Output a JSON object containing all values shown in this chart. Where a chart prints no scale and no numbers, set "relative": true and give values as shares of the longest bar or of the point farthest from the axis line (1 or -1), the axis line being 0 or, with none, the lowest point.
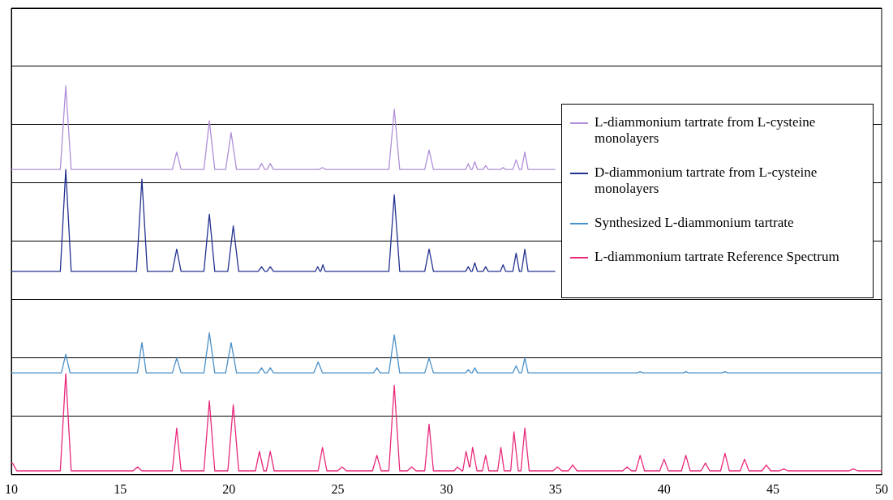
{
  "chart_data": {
    "type": "line",
    "relative": true,
    "xlim": [
      10,
      50
    ],
    "xticks": [
      10,
      15,
      20,
      25,
      30,
      35,
      40,
      45,
      50
    ],
    "tick_labels": "x",
    "grid": "y",
    "legend": "right",
    "marker": "none",
    "line_style": "solid",
    "series": [
      {
        "name": "L-diammonium tartrate from L-cysteine monolayers",
        "color": "#b08fd8",
        "x": [
          10,
          12.25,
          12.5,
          12.75,
          17.4,
          17.6,
          17.8,
          18.85,
          19.1,
          19.35,
          19.85,
          20.1,
          20.35,
          21.35,
          21.5,
          21.65,
          21.75,
          21.9,
          22.05,
          24.15,
          24.3,
          24.45,
          27.35,
          27.6,
          27.85,
          29,
          29.2,
          29.4,
          30.88,
          31,
          31.12,
          31.18,
          31.3,
          31.42,
          31.68,
          31.8,
          31.92,
          32.48,
          32.6,
          32.72,
          33.05,
          33.2,
          33.35,
          33.45,
          33.6,
          33.75,
          35
        ],
        "values": [
          0.785,
          0.785,
          1,
          0.785,
          0.785,
          0.83,
          0.785,
          0.785,
          0.91,
          0.785,
          0.785,
          0.88,
          0.785,
          0.785,
          0.8,
          0.785,
          0.785,
          0.8,
          0.785,
          0.785,
          0.79,
          0.785,
          0.785,
          0.94,
          0.785,
          0.785,
          0.835,
          0.785,
          0.785,
          0.8,
          0.785,
          0.785,
          0.805,
          0.785,
          0.785,
          0.795,
          0.785,
          0.785,
          0.79,
          0.785,
          0.785,
          0.81,
          0.785,
          0.785,
          0.83,
          0.785,
          0.785
        ]
      },
      {
        "name": "D-diammonium tartrate from L-cysteine monolayers",
        "color": "#23318f",
        "x": [
          10,
          12.25,
          12.5,
          12.75,
          15.75,
          16,
          16.25,
          17.4,
          17.6,
          17.8,
          18.85,
          19.1,
          19.35,
          19.95,
          20.2,
          20.45,
          21.35,
          21.5,
          21.65,
          21.75,
          21.9,
          22.05,
          23.98,
          24.08,
          24.18,
          24.22,
          24.32,
          24.42,
          27.35,
          27.6,
          27.85,
          29,
          29.2,
          29.4,
          30.88,
          31,
          31.12,
          31.18,
          31.3,
          31.42,
          31.68,
          31.8,
          31.92,
          32.48,
          32.6,
          32.72,
          33.05,
          33.2,
          33.35,
          33.45,
          33.6,
          33.75,
          35
        ],
        "values": [
          0.523,
          0.523,
          0.785,
          0.523,
          0.523,
          0.76,
          0.523,
          0.523,
          0.58,
          0.523,
          0.523,
          0.67,
          0.523,
          0.523,
          0.64,
          0.523,
          0.523,
          0.535,
          0.523,
          0.523,
          0.535,
          0.523,
          0.523,
          0.535,
          0.523,
          0.523,
          0.54,
          0.523,
          0.523,
          0.72,
          0.523,
          0.523,
          0.58,
          0.523,
          0.523,
          0.535,
          0.523,
          0.523,
          0.545,
          0.523,
          0.523,
          0.535,
          0.523,
          0.523,
          0.54,
          0.523,
          0.523,
          0.57,
          0.523,
          0.523,
          0.58,
          0.523,
          0.523
        ]
      },
      {
        "name": "Synthesized L-diammonium tartrate",
        "color": "#4a90c8",
        "x": [
          10,
          12.3,
          12.5,
          12.7,
          15.8,
          16,
          16.2,
          17.4,
          17.6,
          17.8,
          18.85,
          19.1,
          19.35,
          19.85,
          20.1,
          20.35,
          21.35,
          21.5,
          21.65,
          21.75,
          21.9,
          22.05,
          23.9,
          24.1,
          24.3,
          26.65,
          26.8,
          26.95,
          27.35,
          27.6,
          27.85,
          29,
          29.2,
          29.4,
          30.88,
          31,
          31.12,
          31.18,
          31.3,
          31.42,
          33.05,
          33.2,
          33.35,
          33.45,
          33.6,
          33.75,
          38.78,
          38.9,
          39.02,
          40.88,
          41,
          41.12,
          42.68,
          42.8,
          42.92,
          50
        ],
        "values": [
          0.262,
          0.262,
          0.31,
          0.262,
          0.262,
          0.34,
          0.262,
          0.262,
          0.3,
          0.262,
          0.262,
          0.365,
          0.262,
          0.262,
          0.34,
          0.262,
          0.262,
          0.275,
          0.262,
          0.262,
          0.275,
          0.262,
          0.262,
          0.29,
          0.262,
          0.262,
          0.275,
          0.262,
          0.262,
          0.36,
          0.262,
          0.262,
          0.3,
          0.262,
          0.262,
          0.27,
          0.262,
          0.262,
          0.275,
          0.262,
          0.262,
          0.28,
          0.262,
          0.262,
          0.3,
          0.262,
          0.262,
          0.265,
          0.262,
          0.262,
          0.265,
          0.262,
          0.262,
          0.265,
          0.262,
          0.262
        ]
      },
      {
        "name": "L-diammonium tartrate Reference Spectrum",
        "color": "#e8287a",
        "x": [
          10,
          10.05,
          10.25,
          12.25,
          12.5,
          12.75,
          15.6,
          15.8,
          16,
          17.4,
          17.6,
          17.8,
          18.85,
          19.1,
          19.35,
          19.95,
          20.2,
          20.45,
          21.22,
          21.4,
          21.6,
          21.72,
          21.9,
          22.08,
          24.1,
          24.3,
          24.5,
          25,
          25.2,
          25.4,
          26.6,
          26.8,
          27,
          27.35,
          27.6,
          27.85,
          28.2,
          28.4,
          28.6,
          29,
          29.2,
          29.4,
          30.35,
          30.5,
          30.7,
          30.75,
          30.9,
          31.05,
          31.08,
          31.2,
          31.4,
          31.65,
          31.8,
          31.95,
          32.35,
          32.5,
          32.65,
          32.95,
          33.1,
          33.3,
          33.42,
          33.6,
          33.8,
          34.9,
          35.1,
          35.3,
          35.6,
          35.8,
          36,
          38.1,
          38.3,
          38.5,
          38.7,
          38.9,
          39.1,
          39.8,
          40,
          40.2,
          40.8,
          41,
          41.2,
          41.7,
          41.9,
          42.1,
          42.6,
          42.8,
          43,
          43.5,
          43.7,
          43.9,
          44.5,
          44.7,
          44.9,
          45.3,
          45.5,
          45.7,
          48.5,
          48.7,
          48.9,
          50
        ],
        "values": [
          0.03,
          0.03,
          0.01,
          0.01,
          0.26,
          0.01,
          0.01,
          0.02,
          0.01,
          0.01,
          0.12,
          0.01,
          0.01,
          0.19,
          0.01,
          0.01,
          0.18,
          0.01,
          0.01,
          0.06,
          0.01,
          0.01,
          0.06,
          0.01,
          0.01,
          0.07,
          0.01,
          0.01,
          0.02,
          0.01,
          0.01,
          0.05,
          0.01,
          0.01,
          0.23,
          0.01,
          0.01,
          0.02,
          0.01,
          0.01,
          0.13,
          0.01,
          0.01,
          0.02,
          0.01,
          0.01,
          0.06,
          0.02,
          0.02,
          0.07,
          0.01,
          0.01,
          0.05,
          0.01,
          0.01,
          0.07,
          0.01,
          0.01,
          0.11,
          0.01,
          0.01,
          0.12,
          0.01,
          0.01,
          0.02,
          0.01,
          0.01,
          0.025,
          0.01,
          0.01,
          0.02,
          0.01,
          0.01,
          0.05,
          0.01,
          0.01,
          0.04,
          0.01,
          0.01,
          0.05,
          0.01,
          0.01,
          0.03,
          0.01,
          0.01,
          0.055,
          0.01,
          0.01,
          0.04,
          0.01,
          0.01,
          0.025,
          0.01,
          0.01,
          0.015,
          0.01,
          0.01,
          0.015,
          0.01,
          0.01
        ]
      }
    ]
  }
}
